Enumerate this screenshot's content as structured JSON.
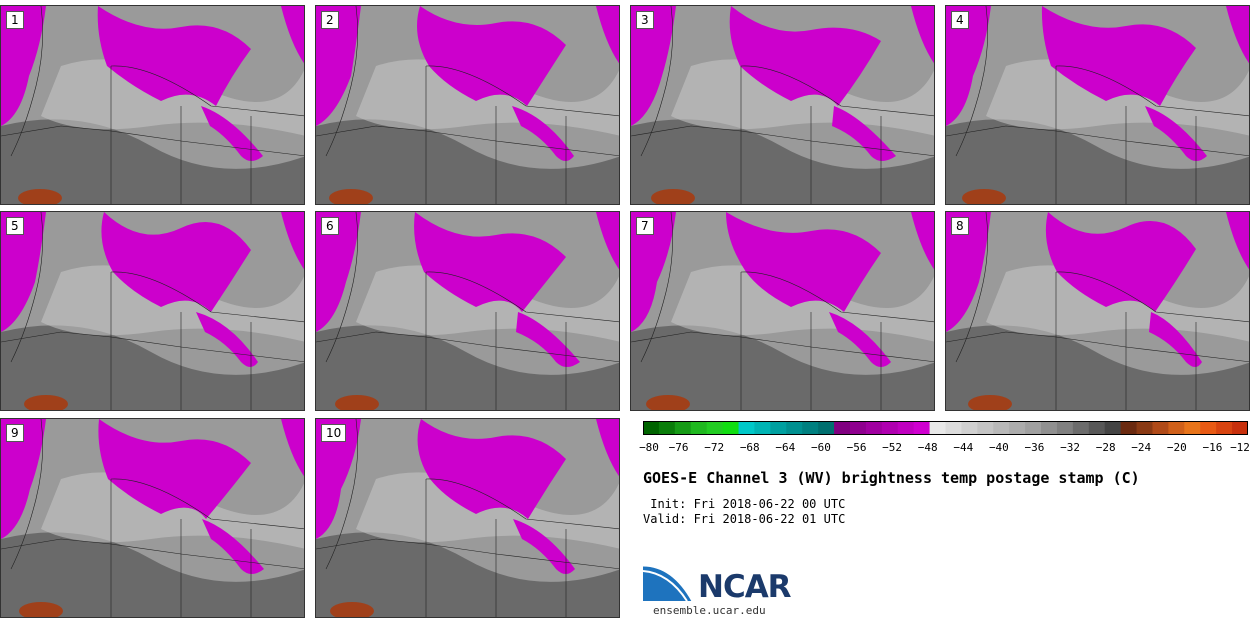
{
  "panels": [
    {
      "number": "1"
    },
    {
      "number": "2"
    },
    {
      "number": "3"
    },
    {
      "number": "4"
    },
    {
      "number": "5"
    },
    {
      "number": "6"
    },
    {
      "number": "7"
    },
    {
      "number": "8"
    },
    {
      "number": "9"
    },
    {
      "number": "10"
    }
  ],
  "colorbar": {
    "tick_labels": [
      "−80",
      "−76",
      "−72",
      "−68",
      "−64",
      "−60",
      "−56",
      "−52",
      "−48",
      "−44",
      "−40",
      "−36",
      "−32",
      "−28",
      "−24",
      "−20",
      "−16",
      "−12"
    ],
    "colors": [
      "#006400",
      "#0a7d0a",
      "#169b16",
      "#1fb81f",
      "#22cc22",
      "#11dd11",
      "#00c8c8",
      "#00b4b4",
      "#00a0a0",
      "#009090",
      "#008080",
      "#006f6f",
      "#800080",
      "#8f008f",
      "#a000a0",
      "#b000b0",
      "#c000c0",
      "#d000d0",
      "#e8e8e8",
      "#dcdcdc",
      "#d0d0d0",
      "#c4c4c4",
      "#b8b8b8",
      "#acacac",
      "#a0a0a0",
      "#909090",
      "#808080",
      "#6c6c6c",
      "#585858",
      "#444444",
      "#6b2a10",
      "#8a3a14",
      "#b04a18",
      "#d0601a",
      "#e8741a",
      "#e85a14",
      "#d84410",
      "#c8300c"
    ]
  },
  "title": "GOES-E Channel 3 (WV) brightness temp postage stamp (C)",
  "init_line": " Init: Fri 2018-06-22 00 UTC",
  "valid_line": "Valid: Fri 2018-06-22 01 UTC",
  "logo": {
    "text": "NCAR",
    "url": "ensemble.ucar.edu"
  },
  "map_colors": {
    "moist": "#cc00cc",
    "dry": "#5a5a5a",
    "mid": "#9a9a9a",
    "light": "#c8c8c8",
    "warm": "#a0401a"
  }
}
